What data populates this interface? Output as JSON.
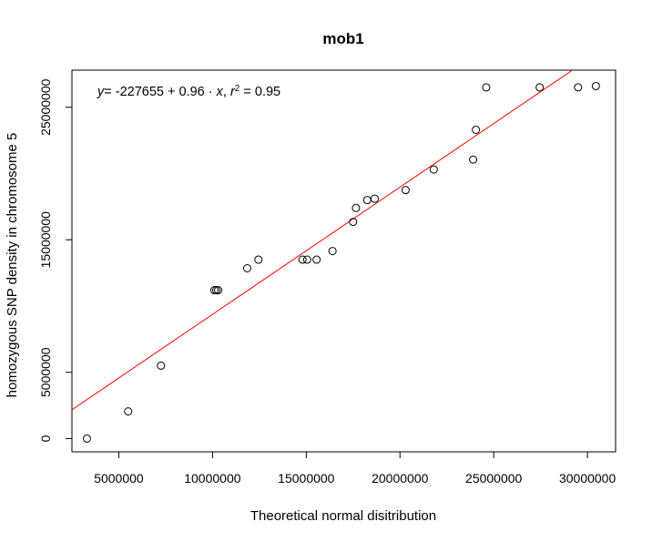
{
  "chart_data": {
    "type": "scatter",
    "title": "mob1",
    "xlabel": "Theoretical normal disitribution",
    "ylabel": "homozygous SNP density in chromosome 5",
    "xlim": [
      2500000,
      31500000
    ],
    "ylim": [
      -1000000,
      27800000
    ],
    "xticks": [
      5000000,
      10000000,
      15000000,
      20000000,
      25000000,
      30000000
    ],
    "xtick_labels": [
      "5000000",
      "10000000",
      "15000000",
      "20000000",
      "25000000",
      "30000000"
    ],
    "yticks": [
      0,
      5000000,
      15000000,
      25000000
    ],
    "ytick_labels": [
      "0",
      "5000000",
      "15000000",
      "25000000"
    ],
    "points": [
      {
        "x": 3300000,
        "y": 0
      },
      {
        "x": 5500000,
        "y": 2050000
      },
      {
        "x": 7250000,
        "y": 5500000
      },
      {
        "x": 10100000,
        "y": 11200000
      },
      {
        "x": 10200000,
        "y": 11200000
      },
      {
        "x": 10300000,
        "y": 11200000
      },
      {
        "x": 11850000,
        "y": 12850000
      },
      {
        "x": 12450000,
        "y": 13500000
      },
      {
        "x": 14800000,
        "y": 13500000
      },
      {
        "x": 15050000,
        "y": 13500000
      },
      {
        "x": 15550000,
        "y": 13500000
      },
      {
        "x": 16400000,
        "y": 14150000
      },
      {
        "x": 17500000,
        "y": 16350000
      },
      {
        "x": 17650000,
        "y": 17400000
      },
      {
        "x": 18250000,
        "y": 18000000
      },
      {
        "x": 18650000,
        "y": 18100000
      },
      {
        "x": 20300000,
        "y": 18750000
      },
      {
        "x": 21800000,
        "y": 20300000
      },
      {
        "x": 23900000,
        "y": 21050000
      },
      {
        "x": 24050000,
        "y": 23300000
      },
      {
        "x": 24600000,
        "y": 26500000
      },
      {
        "x": 27450000,
        "y": 26500000
      },
      {
        "x": 29500000,
        "y": 26500000
      },
      {
        "x": 30450000,
        "y": 26600000
      }
    ],
    "regression": {
      "intercept": -227655,
      "slope": 0.96,
      "r2": 0.95,
      "color": "#ff0000"
    },
    "equation": {
      "y_var": "y",
      "equals": "= ",
      "intercept_text": "-227655",
      "plus": " + ",
      "slope_text": "0.96",
      "dot": " · ",
      "x_var": "x",
      "comma": ", ",
      "r_var": "r",
      "r_exp": "2",
      "r2_equals": " = ",
      "r2_text": "0.95"
    }
  }
}
